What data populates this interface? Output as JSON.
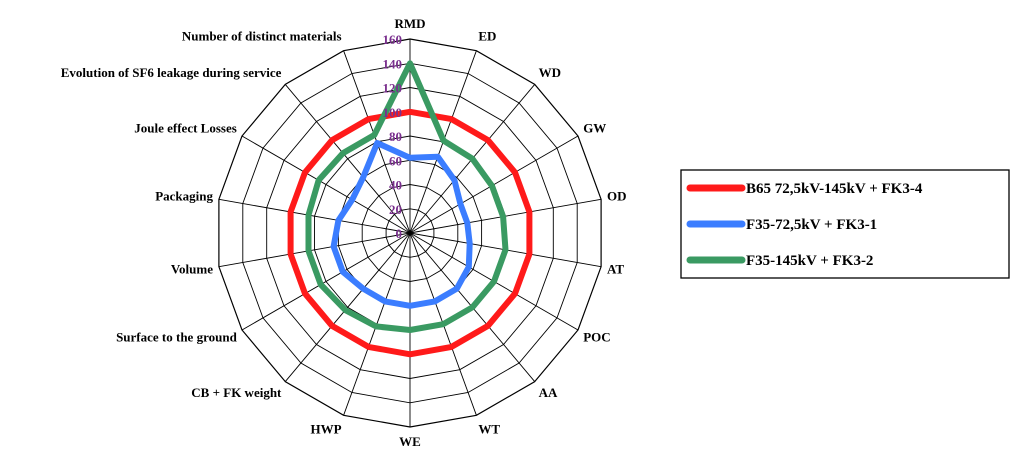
{
  "chart_data": {
    "type": "radar",
    "title": "",
    "axes": [
      "RMD",
      "ED",
      "WD",
      "GW",
      "OD",
      "AT",
      "POC",
      "AA",
      "WT",
      "WE",
      "HWP",
      "CB + FK weight",
      "Surface to the ground",
      "Volume",
      "Packaging",
      "Joule effect Losses",
      "Evolution of SF6 leakage during service",
      "Number of distinct materials"
    ],
    "ticks": [
      "0",
      "20",
      "40",
      "60",
      "80",
      "100",
      "120",
      "140",
      "160"
    ],
    "range": [
      0,
      160
    ],
    "grid": true,
    "legend_position": "right",
    "series": [
      {
        "name": "B65 72,5kV-145kV + FK3-4",
        "color": "#ff1a1a",
        "values": [
          100,
          100,
          100,
          100,
          100,
          100,
          100,
          100,
          100,
          100,
          100,
          100,
          100,
          100,
          100,
          100,
          100,
          100
        ]
      },
      {
        "name": "F35-72,5kV + FK3-1",
        "color": "#3b7dff",
        "values": [
          62,
          67,
          57,
          48,
          48,
          50,
          56,
          60,
          60,
          60,
          60,
          60,
          64,
          64,
          60,
          55,
          60,
          79
        ]
      },
      {
        "name": "F35-145kV + FK3-2",
        "color": "#3a9a62",
        "values": [
          140,
          81,
          80,
          78,
          78,
          80,
          80,
          80,
          80,
          80,
          82,
          83,
          85,
          85,
          85,
          87,
          86,
          86
        ]
      }
    ]
  }
}
